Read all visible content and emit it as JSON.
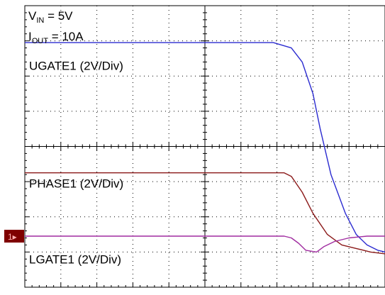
{
  "chart_data": {
    "type": "line",
    "title": "",
    "xlabel": "",
    "ylabel": "",
    "grid": true,
    "grid_divisions": {
      "x": 10,
      "y": 8
    },
    "xlim": [
      0,
      10
    ],
    "ylim": [
      -4,
      4
    ],
    "conditions": {
      "vin_prefix": "V",
      "vin_sub": "IN",
      "vin_value": " = 5V",
      "iout_prefix": "I",
      "iout_sub": "OUT",
      "iout_value": " = 10A"
    },
    "channel_marker": {
      "label": "1▸",
      "level": -2.55,
      "color": "#7f0000"
    },
    "series": [
      {
        "name": "UGATE1 (2V/Div)",
        "color": "#2b2bd0",
        "points": [
          [
            0.0,
            2.95
          ],
          [
            6.9,
            2.95
          ],
          [
            7.4,
            2.8
          ],
          [
            7.7,
            2.4
          ],
          [
            8.0,
            1.5
          ],
          [
            8.2,
            0.5
          ],
          [
            8.5,
            -0.8
          ],
          [
            8.9,
            -1.9
          ],
          [
            9.2,
            -2.5
          ],
          [
            9.5,
            -2.8
          ],
          [
            9.8,
            -2.95
          ],
          [
            10.0,
            -3.0
          ]
        ]
      },
      {
        "name": "PHASE1 (2V/Div)",
        "color": "#8b1a1a",
        "points": [
          [
            0.0,
            -0.75
          ],
          [
            7.2,
            -0.75
          ],
          [
            7.4,
            -0.85
          ],
          [
            7.7,
            -1.3
          ],
          [
            8.0,
            -1.9
          ],
          [
            8.4,
            -2.5
          ],
          [
            8.8,
            -2.8
          ],
          [
            9.2,
            -2.9
          ],
          [
            9.6,
            -3.0
          ],
          [
            10.0,
            -3.05
          ]
        ]
      },
      {
        "name": "LGATE1 (2V/Div)",
        "color": "#a02ca0",
        "points": [
          [
            0.0,
            -2.55
          ],
          [
            7.2,
            -2.55
          ],
          [
            7.4,
            -2.6
          ],
          [
            7.6,
            -2.75
          ],
          [
            7.8,
            -2.95
          ],
          [
            8.1,
            -3.0
          ],
          [
            8.3,
            -2.85
          ],
          [
            8.6,
            -2.7
          ],
          [
            9.0,
            -2.6
          ],
          [
            9.5,
            -2.55
          ],
          [
            10.0,
            -2.55
          ]
        ]
      }
    ],
    "series_labels_level": [
      2.3,
      -1.05,
      -3.2
    ]
  }
}
